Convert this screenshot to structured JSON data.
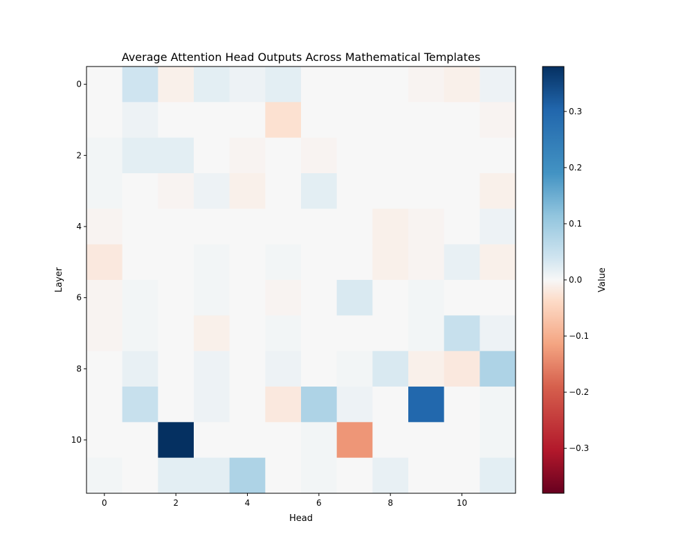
{
  "chart_data": {
    "type": "heatmap",
    "title": "Average Attention Head Outputs Across Mathematical Templates",
    "xlabel": "Head",
    "ylabel": "Layer",
    "x_ticks": [
      "0",
      "2",
      "4",
      "6",
      "8",
      "10"
    ],
    "y_ticks": [
      "0",
      "2",
      "4",
      "6",
      "8",
      "10"
    ],
    "colorbar": {
      "label": "Value",
      "colormap": "RdBu",
      "vmin": -0.38,
      "vmax": 0.38,
      "ticks": [
        "0.3",
        "0.2",
        "0.1",
        "0.0",
        "−0.1",
        "−0.2",
        "−0.3"
      ],
      "tick_values": [
        0.3,
        0.2,
        0.1,
        0.0,
        -0.1,
        -0.2,
        -0.3
      ]
    },
    "rows": 12,
    "cols": 12,
    "values": [
      [
        0.0,
        0.04,
        -0.01,
        0.02,
        0.01,
        0.02,
        0.0,
        0.0,
        0.0,
        -0.005,
        -0.01,
        0.01
      ],
      [
        0.0,
        0.01,
        0.0,
        0.0,
        0.0,
        -0.03,
        0.0,
        0.0,
        0.0,
        0.0,
        0.0,
        -0.005
      ],
      [
        0.005,
        0.02,
        0.02,
        0.0,
        -0.005,
        0.0,
        -0.005,
        0.0,
        0.0,
        0.0,
        0.0,
        0.0
      ],
      [
        0.005,
        0.0,
        -0.005,
        0.01,
        -0.01,
        0.0,
        0.02,
        0.0,
        0.0,
        0.0,
        0.0,
        -0.01
      ],
      [
        -0.005,
        0.0,
        0.0,
        0.0,
        0.0,
        0.0,
        0.0,
        0.0,
        -0.01,
        -0.005,
        0.0,
        0.01
      ],
      [
        -0.02,
        0.0,
        0.0,
        0.005,
        0.0,
        0.005,
        0.0,
        0.0,
        -0.01,
        -0.005,
        0.015,
        -0.01
      ],
      [
        -0.005,
        0.005,
        0.0,
        0.005,
        0.0,
        -0.005,
        0.0,
        0.03,
        0.0,
        0.005,
        0.0,
        0.0
      ],
      [
        -0.005,
        0.005,
        0.0,
        -0.01,
        0.0,
        0.005,
        0.0,
        0.0,
        0.0,
        0.005,
        0.05,
        0.01
      ],
      [
        0.0,
        0.015,
        0.0,
        0.01,
        0.0,
        0.01,
        0.0,
        0.005,
        0.03,
        -0.01,
        -0.02,
        0.08
      ],
      [
        0.0,
        0.05,
        0.0,
        0.01,
        0.0,
        -0.02,
        0.08,
        0.01,
        0.0,
        0.3,
        0.0,
        0.005
      ],
      [
        0.0,
        0.0,
        0.38,
        0.0,
        0.0,
        0.0,
        0.005,
        -0.13,
        0.0,
        0.0,
        0.0,
        0.005
      ],
      [
        0.005,
        0.0,
        0.02,
        0.02,
        0.08,
        0.0,
        0.005,
        0.0,
        0.015,
        0.0,
        0.0,
        0.02
      ]
    ]
  }
}
